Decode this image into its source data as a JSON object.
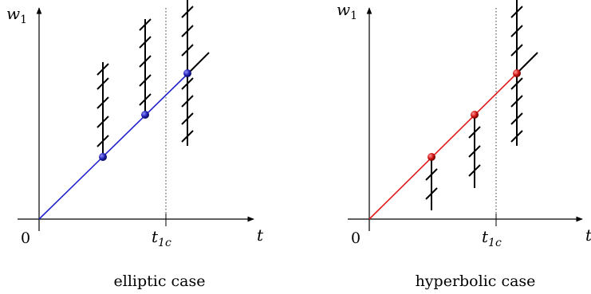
{
  "panels": [
    {
      "caption": "elliptic case",
      "y_axis_label": "w",
      "y_axis_sub": "1",
      "x_axis_label": "t",
      "origin_label": "0",
      "tick_label": "t",
      "tick_sub": "1c",
      "line_color": "#2222cc",
      "point_color": "#1a1aa0",
      "hatches_extend": "up"
    },
    {
      "caption": "hyperbolic case",
      "y_axis_label": "w",
      "y_axis_sub": "1",
      "x_axis_label": "t",
      "origin_label": "0",
      "tick_label": "t",
      "tick_sub": "1c",
      "line_color": "#e01a1a",
      "point_color": "#d01010",
      "hatches_extend": "down"
    }
  ]
}
